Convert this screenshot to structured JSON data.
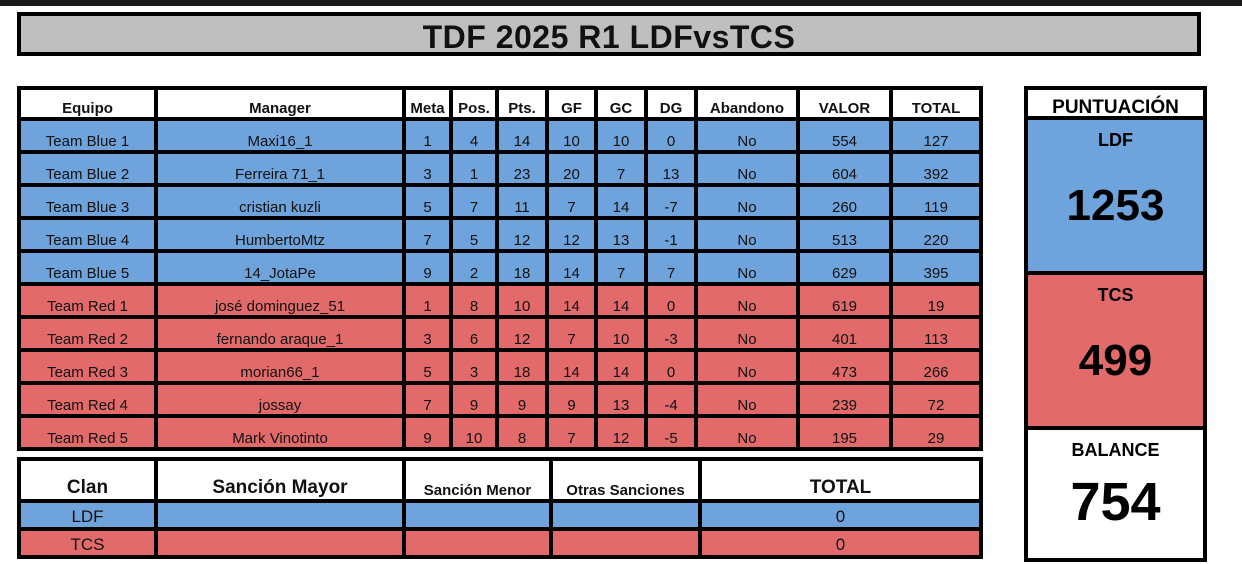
{
  "title": "TDF 2025 R1 LDFvsTCS",
  "main_table": {
    "headers": [
      "Equipo",
      "Manager",
      "Meta",
      "Pos.",
      "Pts.",
      "GF",
      "GC",
      "DG",
      "Abandono",
      "VALOR",
      "TOTAL"
    ],
    "rows": [
      [
        "Team Blue 1",
        "Maxi16_1",
        "1",
        "4",
        "14",
        "10",
        "10",
        "0",
        "No",
        "554",
        "127"
      ],
      [
        "Team Blue 2",
        "Ferreira 71_1",
        "3",
        "1",
        "23",
        "20",
        "7",
        "13",
        "No",
        "604",
        "392"
      ],
      [
        "Team Blue 3",
        "cristian kuzli",
        "5",
        "7",
        "11",
        "7",
        "14",
        "-7",
        "No",
        "260",
        "119"
      ],
      [
        "Team Blue 4",
        "HumbertoMtz",
        "7",
        "5",
        "12",
        "12",
        "13",
        "-1",
        "No",
        "513",
        "220"
      ],
      [
        "Team Blue 5",
        "14_JotaPe",
        "9",
        "2",
        "18",
        "14",
        "7",
        "7",
        "No",
        "629",
        "395"
      ],
      [
        "Team Red 1",
        "josé dominguez_51",
        "1",
        "8",
        "10",
        "14",
        "14",
        "0",
        "No",
        "619",
        "19"
      ],
      [
        "Team Red 2",
        "fernando araque_1",
        "3",
        "6",
        "12",
        "7",
        "10",
        "-3",
        "No",
        "401",
        "113"
      ],
      [
        "Team Red 3",
        "morian66_1",
        "5",
        "3",
        "18",
        "14",
        "14",
        "0",
        "No",
        "473",
        "266"
      ],
      [
        "Team Red 4",
        "jossay",
        "7",
        "9",
        "9",
        "9",
        "13",
        "-4",
        "No",
        "239",
        "72"
      ],
      [
        "Team Red 5",
        "Mark Vinotinto",
        "9",
        "10",
        "8",
        "7",
        "12",
        "-5",
        "No",
        "195",
        "29"
      ]
    ]
  },
  "clan_table": {
    "headers": [
      "Clan",
      "Sanción Mayor",
      "Sanción Menor",
      "Otras Sanciones",
      "TOTAL"
    ],
    "rows": [
      [
        "LDF",
        "",
        "",
        "",
        "0"
      ],
      [
        "TCS",
        "",
        "",
        "",
        "0"
      ]
    ]
  },
  "score_panel": {
    "header": "PUNTUACIÓN",
    "ldf_label": "LDF",
    "ldf_value": "1253",
    "tcs_label": "TCS",
    "tcs_value": "499",
    "balance_label": "BALANCE",
    "balance_value": "754"
  },
  "colors": {
    "blue": "#6fa3dc",
    "red": "#e26a6a",
    "title_bg": "#bfbfbf"
  }
}
